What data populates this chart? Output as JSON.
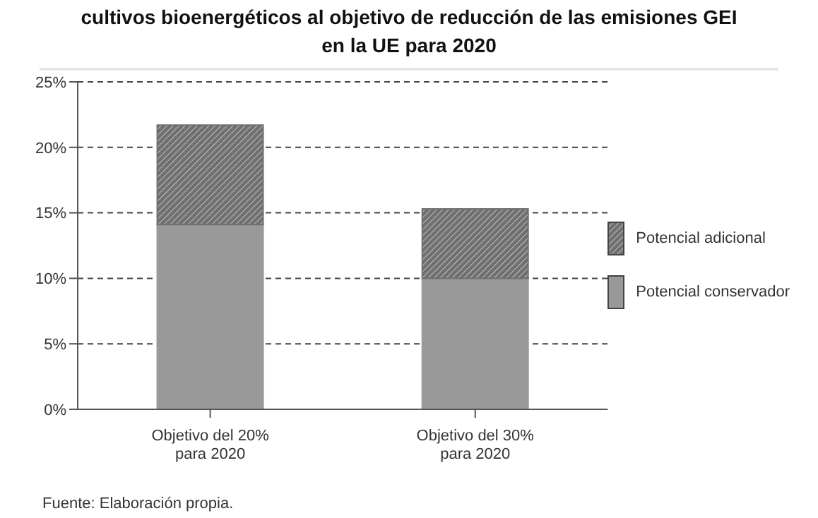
{
  "chart_data": {
    "type": "bar",
    "title": "cultivos bioenergéticos al objetivo de reducción de las emisiones GEI en la UE para 2020",
    "categories": [
      "Objetivo del 20%\npara 2020",
      "Objetivo del 30%\npara 2020"
    ],
    "stacked": true,
    "series": [
      {
        "name": "Potencial conservador",
        "color": "#999999",
        "values": [
          14.1,
          10.0
        ]
      },
      {
        "name": "Potencial adicional",
        "color": "#707070",
        "values": [
          7.6,
          5.3
        ]
      }
    ],
    "ylim": [
      0,
      25
    ],
    "yticks": [
      {
        "value": 0,
        "label": "0%"
      },
      {
        "value": 5,
        "label": "5%"
      },
      {
        "value": 10,
        "label": "10%"
      },
      {
        "value": 15,
        "label": "15%"
      },
      {
        "value": 20,
        "label": "20%"
      },
      {
        "value": 25,
        "label": "25%"
      }
    ],
    "grid": "y",
    "legend": "right",
    "annotations": [
      "Fuente: Elaboración propia."
    ]
  }
}
